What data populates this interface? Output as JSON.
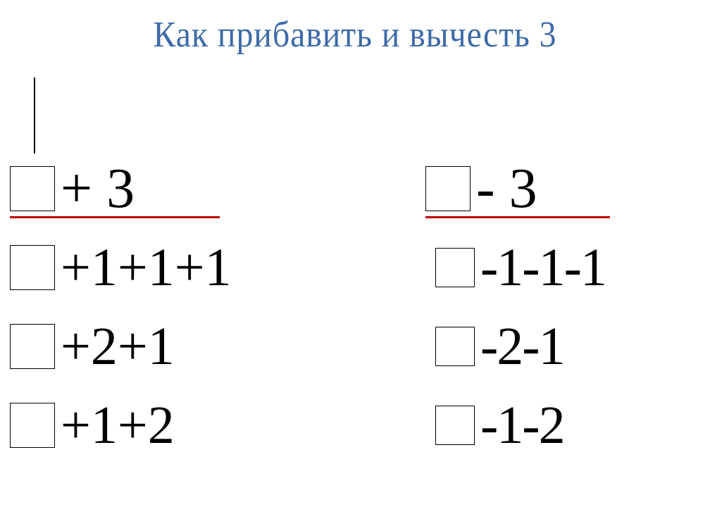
{
  "title": "Как прибавить и вычесть 3",
  "colors": {
    "title_color": "#3d6aa8",
    "underline_color": "#c00000",
    "text_color": "#000000",
    "background": "#ffffff",
    "box_border": "#000000"
  },
  "typography": {
    "title_fontsize": 52,
    "expr_fontsize": 76,
    "header_expr_fontsize": 80,
    "font_family": "Times New Roman"
  },
  "layout": {
    "box_size": 64,
    "inner_box_size": 56,
    "underline_left_width": 298,
    "underline_right_width": 262
  },
  "left_column": {
    "header": "+ 3",
    "rows": [
      "+1+1+1",
      "+2+1",
      "+1+2"
    ]
  },
  "right_column": {
    "header": " - 3",
    "rows": [
      "-1-1-1",
      "-2-1",
      "-1-2"
    ]
  }
}
